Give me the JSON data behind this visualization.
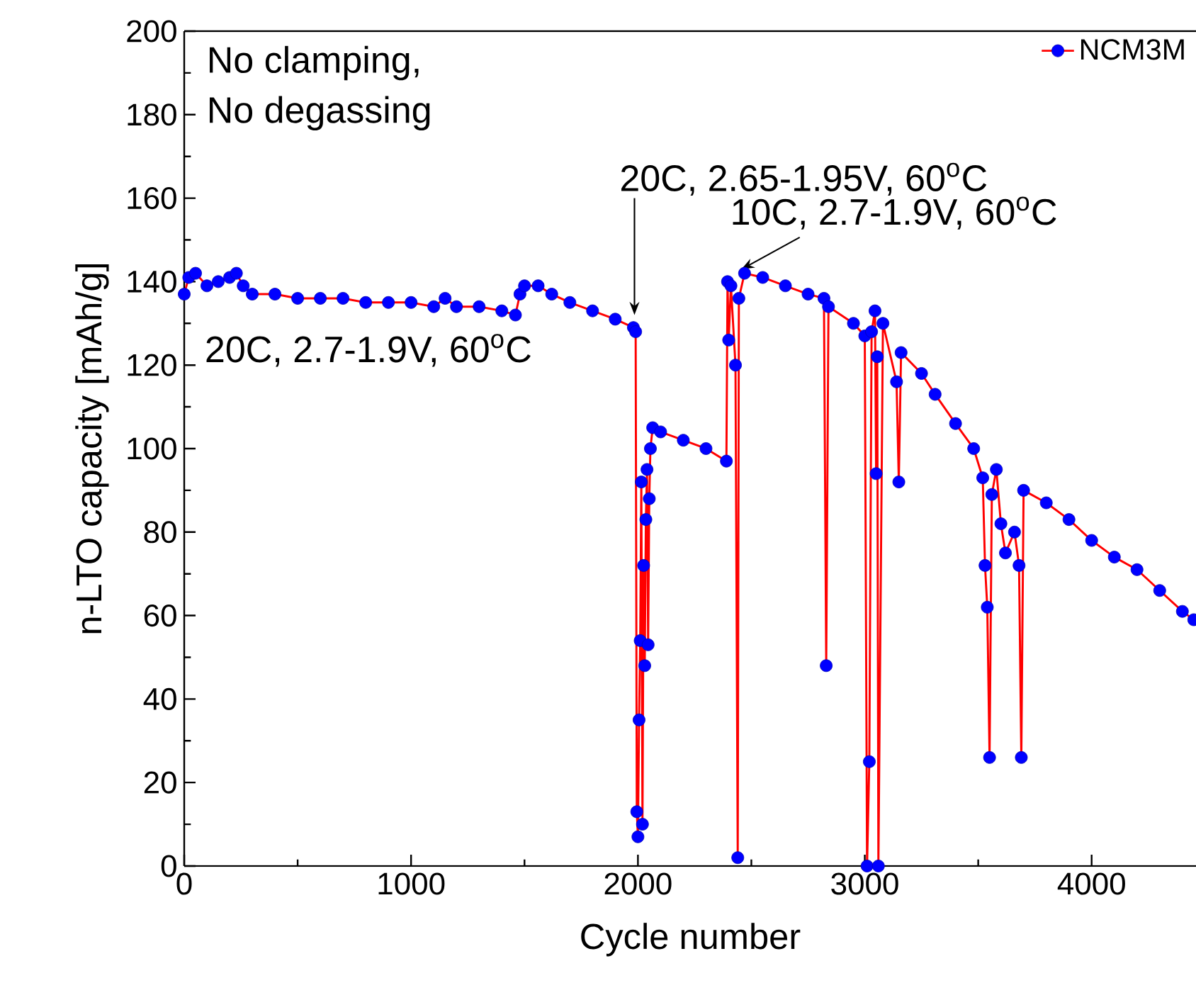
{
  "chart_data": {
    "type": "line",
    "xlabel": "Cycle number",
    "ylabel": "n-LTO capacity [mAh/g]",
    "xlim": [
      0,
      4460
    ],
    "ylim": [
      0,
      200
    ],
    "xticks": [
      0,
      1000,
      2000,
      3000,
      4000
    ],
    "yticks": [
      0,
      20,
      40,
      60,
      80,
      100,
      120,
      140,
      160,
      180,
      200
    ],
    "legend": "top right",
    "marker": "circle",
    "line_style": "solid",
    "grid": false,
    "series": [
      {
        "name": "NCM3M",
        "color": "#0000ff",
        "x": [
          0,
          20,
          50,
          100,
          150,
          200,
          230,
          260,
          300,
          400,
          500,
          600,
          700,
          800,
          900,
          1000,
          1100,
          1150,
          1200,
          1300,
          1400,
          1460,
          1480,
          1500,
          1560,
          1620,
          1700,
          1800,
          1900,
          1980,
          1990,
          1995,
          2000,
          2005,
          2010,
          2015,
          2020,
          2025,
          2030,
          2035,
          2040,
          2045,
          2050,
          2055,
          2065,
          2100,
          2200,
          2300,
          2390,
          2395,
          2400,
          2410,
          2430,
          2440,
          2445,
          2470,
          2550,
          2650,
          2750,
          2820,
          2830,
          2840,
          2950,
          3000,
          3010,
          3020,
          3030,
          3045,
          3050,
          3055,
          3060,
          3080,
          3140,
          3150,
          3160,
          3250,
          3310,
          3400,
          3480,
          3520,
          3530,
          3540,
          3550,
          3560,
          3580,
          3600,
          3620,
          3660,
          3680,
          3690,
          3700,
          3800,
          3900,
          4000,
          4100,
          4200,
          4300,
          4400,
          4450
        ],
        "values": [
          137,
          141,
          142,
          139,
          140,
          141,
          142,
          139,
          137,
          137,
          136,
          136,
          136,
          135,
          135,
          135,
          134,
          136,
          134,
          134,
          133,
          132,
          137,
          139,
          139,
          137,
          135,
          133,
          131,
          129,
          128,
          13,
          7,
          35,
          54,
          92,
          10,
          72,
          48,
          83,
          95,
          53,
          88,
          100,
          105,
          104,
          102,
          100,
          97,
          140,
          126,
          139,
          120,
          2,
          136,
          142,
          141,
          139,
          137,
          136,
          48,
          134,
          130,
          127,
          0,
          25,
          128,
          133,
          94,
          122,
          0,
          130,
          116,
          92,
          123,
          118,
          113,
          106,
          100,
          93,
          72,
          62,
          26,
          89,
          95,
          82,
          75,
          80,
          72,
          26,
          90,
          87,
          83,
          78,
          74,
          71,
          66,
          61,
          59
        ]
      }
    ],
    "annotations": [
      "No clamping,",
      "No degassing",
      "20C, 2.7-1.9V, 60$^{o}$C",
      "20C, 2.65-1.95V, 60$^{o}$C",
      {
        "text": "10C, 2.7-1.9V, 60$^{o}$C",
        "x": 2480,
        "y": 142
      }
    ]
  }
}
